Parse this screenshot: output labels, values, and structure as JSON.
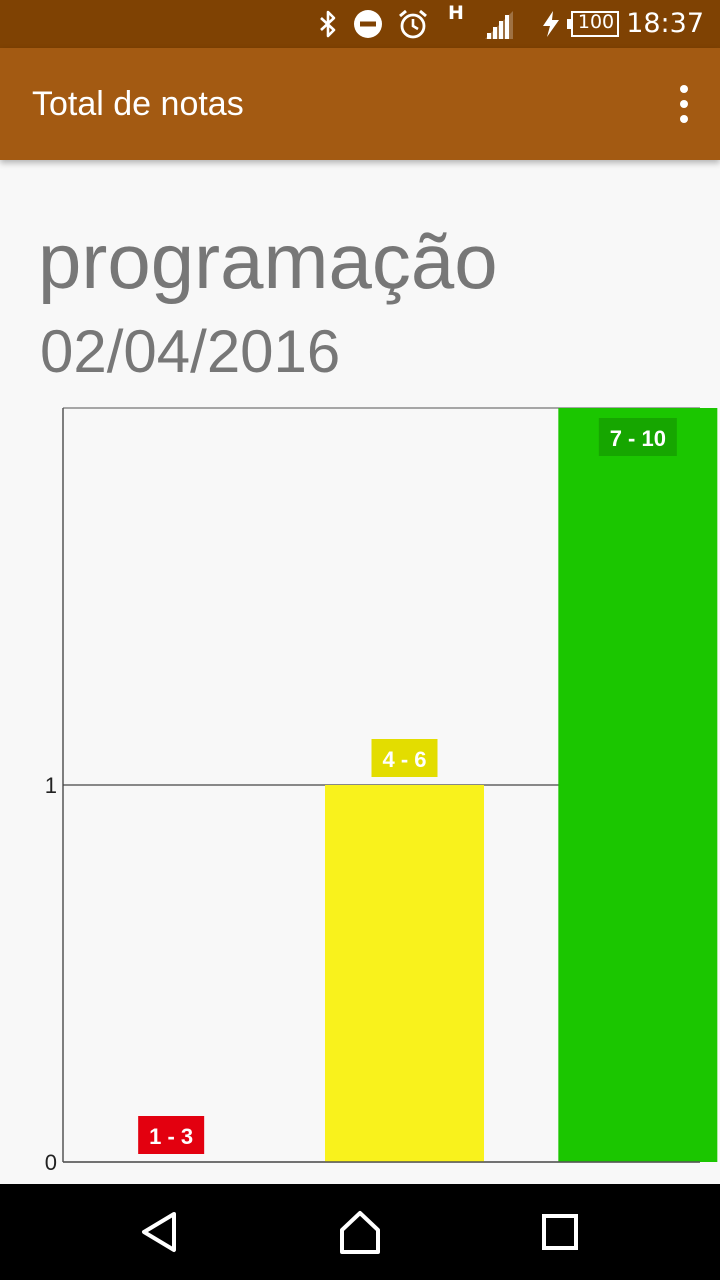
{
  "status_bar": {
    "icons": [
      "bluetooth-icon",
      "do-not-disturb-icon",
      "alarm-icon",
      "network-h-icon",
      "signal-icon",
      "charging-icon",
      "battery-icon"
    ],
    "network_type": "H",
    "battery_level": "100",
    "time": "18:37"
  },
  "app_bar": {
    "title": "Total de notas",
    "menu_icon": "more-vert-icon",
    "color": "#a35a12"
  },
  "subject": "programação",
  "date": "02/04/2016",
  "chart_data": {
    "type": "bar",
    "categories": [
      "1 - 3",
      "4 - 6",
      "7 - 10"
    ],
    "values": [
      0,
      1,
      2
    ],
    "colors": [
      "#e3000f",
      "#f9f21c",
      "#1bc600"
    ],
    "label_colors": [
      "#e3000f",
      "#e3dd00",
      "#16a600"
    ],
    "ylim": [
      0,
      2
    ],
    "yticks": [
      0,
      1
    ],
    "ytick_labels": [
      "0",
      "1"
    ],
    "grid": true
  },
  "nav_bar": {
    "buttons": [
      "back-icon",
      "home-icon",
      "recents-icon"
    ]
  }
}
